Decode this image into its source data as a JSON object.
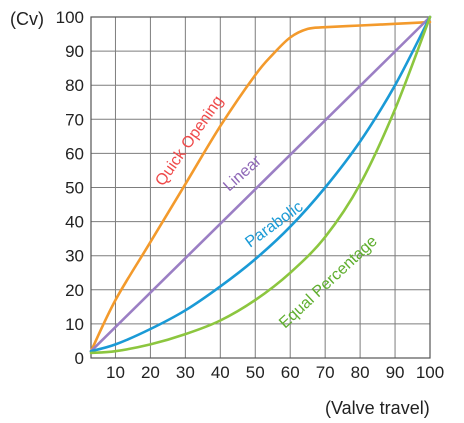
{
  "chart_data": {
    "type": "line",
    "title": "",
    "ylabel": "(Cv)",
    "xlabel": "(Valve travel)",
    "xlim": [
      3,
      100
    ],
    "ylim": [
      0,
      100
    ],
    "x_ticks": [
      "10",
      "20",
      "30",
      "40",
      "50",
      "60",
      "70",
      "80",
      "90",
      "100"
    ],
    "y_ticks": [
      "0",
      "10",
      "20",
      "30",
      "40",
      "50",
      "60",
      "70",
      "80",
      "90",
      "100"
    ],
    "grid": true,
    "legend": "none",
    "series": [
      {
        "name": "Quick Opening",
        "color": "#f39a2c",
        "x": [
          3,
          10,
          20,
          30,
          40,
          50,
          55,
          60,
          65,
          70,
          80,
          90,
          100
        ],
        "y": [
          2,
          17,
          34,
          51,
          68,
          83,
          89,
          94,
          96.5,
          97,
          97.5,
          98,
          98.5
        ]
      },
      {
        "name": "Linear",
        "color": "#9b7fc4",
        "x": [
          3,
          100
        ],
        "y": [
          2,
          100
        ]
      },
      {
        "name": "Parabolic",
        "color": "#1a9ad6",
        "x": [
          3,
          10,
          20,
          30,
          40,
          50,
          60,
          70,
          80,
          90,
          100
        ],
        "y": [
          2,
          4,
          8.5,
          14,
          21,
          29,
          38.5,
          50,
          63.5,
          80,
          100
        ]
      },
      {
        "name": "Equal Percentage",
        "color": "#8cc63f",
        "x": [
          3,
          10,
          20,
          30,
          40,
          50,
          60,
          70,
          80,
          90,
          100
        ],
        "y": [
          1.5,
          2,
          4,
          7,
          11,
          17,
          25,
          35.5,
          51,
          73,
          100
        ]
      }
    ]
  }
}
